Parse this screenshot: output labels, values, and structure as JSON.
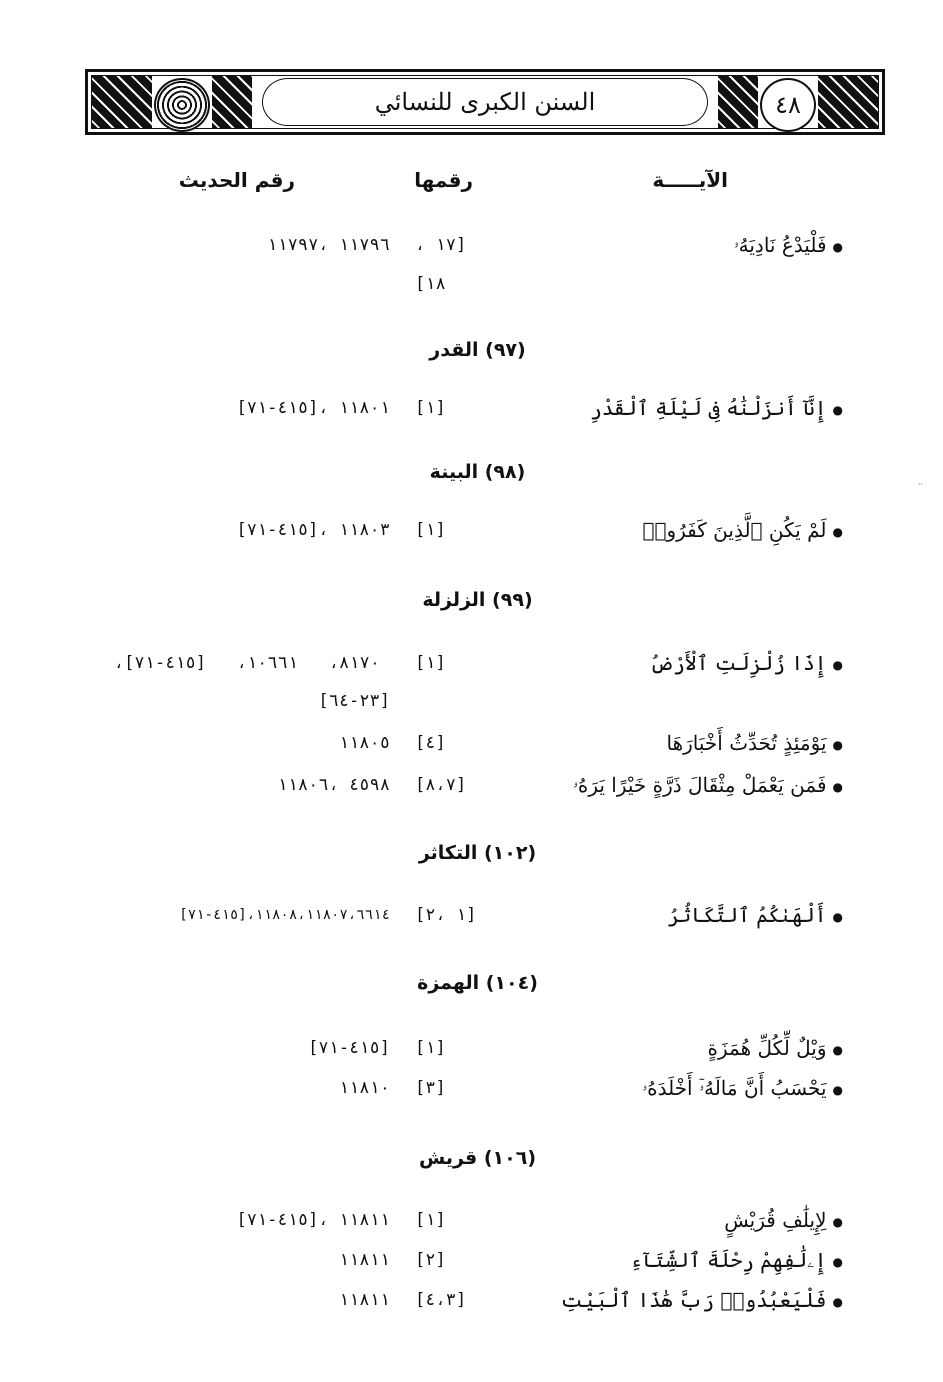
{
  "header": {
    "page_number": "٤٨",
    "title": "السنن الكبرى للنسائي",
    "logo_text": "السنن الكبرى"
  },
  "columns": {
    "verse": "الآيـــــة",
    "verse_number": "رقمها",
    "hadith_number": "رقم الحديث"
  },
  "sections": [
    {
      "heading": "",
      "rows": [
        {
          "verse": "فَلْيَدْعُ نَادِيَهُۥ",
          "ref": "، ١٧]",
          "ref_line2": "[١٨",
          "hadith": "١١٧٩٧، ١١٧٩٦"
        }
      ]
    },
    {
      "heading": "(٩٧) القدر",
      "rows": [
        {
          "verse": "إِنَّآ أَنزَلْنَٰهُ فِى لَيْلَةِ ٱلْقَدْرِ",
          "ref": "[١]",
          "hadith": "[٧١-٤١٥]، ١١٨٠١"
        }
      ]
    },
    {
      "heading": "(٩٨) البينة",
      "rows": [
        {
          "verse": "لَمْ يَكُنِ ٱلَّذِينَ كَفَرُوا۟",
          "ref": "[١]",
          "hadith": "[٧١-٤١٥]، ١١٨٠٣"
        }
      ]
    },
    {
      "heading": "(٩٩) الزلزلة",
      "rows": [
        {
          "verse": "إِذَا زُلْزِلَتِ ٱلْأَرْضُ",
          "ref": "[١]",
          "hadith": "،[٧١-٤١٥]   ،١٠٦٦١   ،٨١٧٠",
          "hadith_line2": "[٦٤-٢٣]"
        },
        {
          "verse": "يَوْمَئِذٍ تُحَدِّثُ أَخْبَارَهَا",
          "ref": "[٤]",
          "hadith": "١١٨٠٥"
        },
        {
          "verse": "فَمَن يَعْمَلْ مِثْقَالَ ذَرَّةٍ خَيْرًا يَرَهُۥ",
          "ref": "[٨،٧]",
          "hadith": "١١٨٠٦، ٤٥٩٨"
        }
      ]
    },
    {
      "heading": "(١٠٢) التكاثر",
      "rows": [
        {
          "verse": "أَلْهَىٰكُمُ ٱلتَّكَاثُرُ",
          "ref": "[٢، ١]",
          "hadith": "[٧١-٤١٥]،١١٨٠٨،١١٨٠٧،٦٦١٤"
        }
      ]
    },
    {
      "heading": "(١٠٤) الهمزة",
      "rows": [
        {
          "verse": "وَيْلٌ لِّكُلِّ هُمَزَةٍ",
          "ref": "[١]",
          "hadith": "[٧١-٤١٥]"
        },
        {
          "verse": "يَحْسَبُ أَنَّ مَالَهُۥٓ أَخْلَدَهُۥ",
          "ref": "[٣]",
          "hadith": "١١٨١٠"
        }
      ]
    },
    {
      "heading": "(١٠٦) قريش",
      "rows": [
        {
          "verse": "لِإِيلَٰفِ قُرَيْشٍ",
          "ref": "[١]",
          "hadith": "[٧١-٤١٥]، ١١٨١١"
        },
        {
          "verse": "إِۦلَٰفِهِمْ رِحْلَةَ ٱلشِّتَآءِ",
          "ref": "[٢]",
          "hadith": "١١٨١١"
        },
        {
          "verse": "فَلْيَعْبُدُوا۟ رَبَّ هَٰذَا ٱلْبَيْتِ",
          "ref": "[٤،٣]",
          "hadith": "١١٨١١"
        }
      ]
    }
  ]
}
